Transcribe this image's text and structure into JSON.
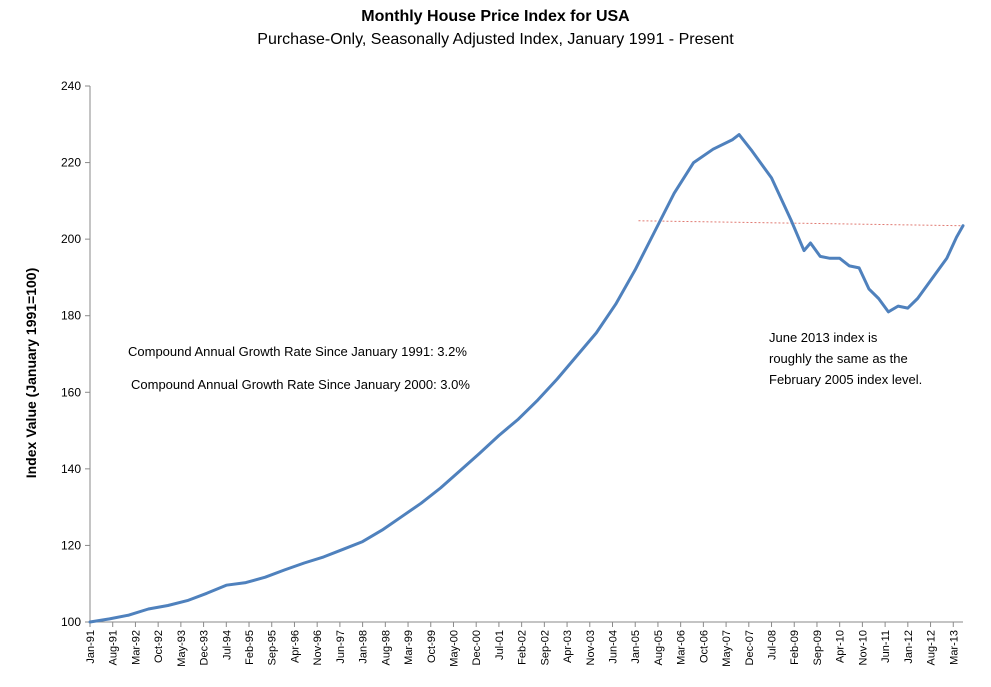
{
  "chart_data": {
    "type": "line",
    "title": "Monthly House Price Index for USA",
    "subtitle": "Purchase-Only, Seasonally Adjusted Index, January 1991 - Present",
    "ylabel": "Index Value (January 1991=100)",
    "xlabel": "",
    "ylim": [
      100,
      240
    ],
    "yticks": [
      "100",
      "120",
      "140",
      "160",
      "180",
      "200",
      "220",
      "240"
    ],
    "xticks": [
      "Jan-91",
      "Aug-91",
      "Mar-92",
      "Oct-92",
      "May-93",
      "Dec-93",
      "Jul-94",
      "Feb-95",
      "Sep-95",
      "Apr-96",
      "Nov-96",
      "Jun-97",
      "Jan-98",
      "Aug-98",
      "Mar-99",
      "Oct-99",
      "May-00",
      "Dec-00",
      "Jul-01",
      "Feb-02",
      "Sep-02",
      "Apr-03",
      "Nov-03",
      "Jun-04",
      "Jan-05",
      "Aug-05",
      "Mar-06",
      "Oct-06",
      "May-07",
      "Dec-07",
      "Jul-08",
      "Feb-09",
      "Sep-09",
      "Apr-10",
      "Nov-10",
      "Jun-11",
      "Jan-12",
      "Aug-12",
      "Mar-13"
    ],
    "grid": false,
    "line_color": "#4F81BD",
    "reference_line_color": "#E07A72",
    "series": [
      {
        "points": [
          [
            "Jan-91",
            100.0
          ],
          [
            "Jul-91",
            100.8
          ],
          [
            "Jan-92",
            101.8
          ],
          [
            "Jul-92",
            103.4
          ],
          [
            "Jan-93",
            104.3
          ],
          [
            "Jul-93",
            105.6
          ],
          [
            "Jan-94",
            107.5
          ],
          [
            "Jul-94",
            109.6
          ],
          [
            "Jan-95",
            110.3
          ],
          [
            "Jul-95",
            111.7
          ],
          [
            "Jan-96",
            113.6
          ],
          [
            "Jul-96",
            115.4
          ],
          [
            "Jan-97",
            117.0
          ],
          [
            "Jul-97",
            119.0
          ],
          [
            "Jan-98",
            121.0
          ],
          [
            "Jul-98",
            124.0
          ],
          [
            "Jan-99",
            127.5
          ],
          [
            "Jul-99",
            131.0
          ],
          [
            "Jan-00",
            135.0
          ],
          [
            "Jul-00",
            139.5
          ],
          [
            "Jan-01",
            144.0
          ],
          [
            "Jul-01",
            148.7
          ],
          [
            "Jan-02",
            153.0
          ],
          [
            "Jul-02",
            158.0
          ],
          [
            "Jan-03",
            163.5
          ],
          [
            "Jul-03",
            169.5
          ],
          [
            "Jan-04",
            175.5
          ],
          [
            "Jul-04",
            183.0
          ],
          [
            "Jan-05",
            192.0
          ],
          [
            "Jul-05",
            202.0
          ],
          [
            "Jan-06",
            212.0
          ],
          [
            "Jul-06",
            220.0
          ],
          [
            "Jan-07",
            223.5
          ],
          [
            "Jul-07",
            226.0
          ],
          [
            "Sep-07",
            227.3
          ],
          [
            "Jan-08",
            223.0
          ],
          [
            "Jul-08",
            216.0
          ],
          [
            "Jan-09",
            205.0
          ],
          [
            "May-09",
            197.0
          ],
          [
            "Jul-09",
            199.0
          ],
          [
            "Oct-09",
            195.5
          ],
          [
            "Jan-10",
            195.0
          ],
          [
            "Apr-10",
            195.0
          ],
          [
            "Jul-10",
            193.0
          ],
          [
            "Oct-10",
            192.5
          ],
          [
            "Jan-11",
            187.0
          ],
          [
            "Apr-11",
            184.5
          ],
          [
            "Jul-11",
            181.0
          ],
          [
            "Oct-11",
            182.5
          ],
          [
            "Jan-12",
            182.0
          ],
          [
            "Apr-12",
            184.5
          ],
          [
            "Jul-12",
            188.0
          ],
          [
            "Oct-12",
            191.5
          ],
          [
            "Jan-13",
            195.0
          ],
          [
            "Apr-13",
            200.5
          ],
          [
            "Jun-13",
            203.5
          ]
        ]
      }
    ],
    "reference_line": {
      "from": "Feb-05",
      "to": "Jun-13",
      "from_value": 204.8,
      "to_value": 203.5,
      "style": "dashed"
    },
    "annotations": {
      "cagr_1991": "Compound Annual Growth Rate Since January 1991:  3.2%",
      "cagr_2000": "Compound Annual Growth Rate Since January 2000:  3.0%",
      "note_lines": [
        "June 2013 index is",
        "roughly the same as the",
        "February 2005 index level."
      ]
    }
  }
}
